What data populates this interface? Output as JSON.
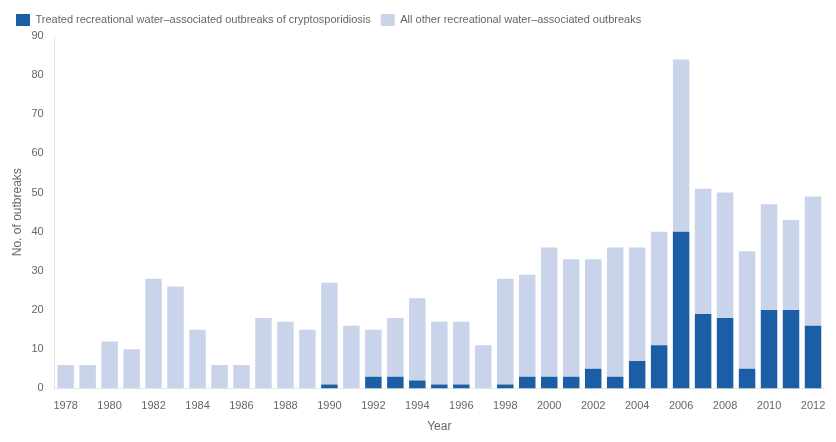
{
  "chart_data": {
    "type": "bar",
    "xlabel": "Year",
    "ylabel": "No. of outbreaks",
    "categories": [
      "1978",
      null,
      "1980",
      null,
      "1982",
      null,
      "1984",
      null,
      "1986",
      null,
      "1988",
      null,
      "1990",
      null,
      "1992",
      null,
      "1994",
      null,
      "1996",
      null,
      "1998",
      null,
      "2000",
      null,
      "2002",
      null,
      "2004",
      null,
      "2006",
      null,
      "2008",
      null,
      "2010",
      null,
      "2012"
    ],
    "series": [
      {
        "name": "Treated recreational water–associated outbreaks of cryptosporidiosis",
        "color": "#1b5ea6",
        "values": [
          0,
          0,
          0,
          0,
          0,
          0,
          0,
          0,
          0,
          0,
          0,
          0,
          1,
          0,
          3,
          3,
          2,
          1,
          1,
          0,
          1,
          3,
          3,
          3,
          5,
          3,
          7,
          11,
          40,
          19,
          18,
          5,
          20,
          20,
          16
        ]
      },
      {
        "name": "All other recreational water–associated outbreaks",
        "color": "#c9d4ea",
        "values": [
          6,
          6,
          12,
          10,
          28,
          26,
          15,
          6,
          6,
          18,
          17,
          15,
          26,
          16,
          12,
          15,
          21,
          16,
          16,
          11,
          27,
          26,
          33,
          30,
          28,
          33,
          29,
          29,
          44,
          32,
          32,
          30,
          27,
          23,
          33
        ]
      }
    ],
    "stacked": true,
    "ylim": [
      0,
      90
    ],
    "yticks": [
      0,
      10,
      20,
      30,
      40,
      50,
      60,
      70,
      80,
      90
    ],
    "grid": false,
    "legend": "upper left"
  }
}
